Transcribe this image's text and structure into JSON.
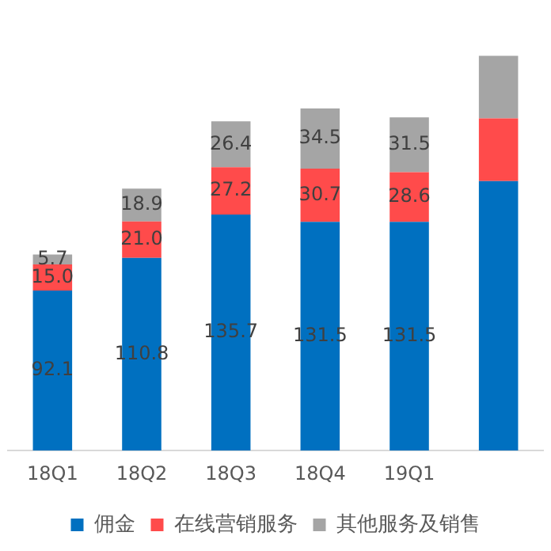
{
  "chart_data": {
    "type": "bar",
    "stacked": true,
    "categories": [
      "18Q1",
      "18Q2",
      "18Q3",
      "18Q4",
      "19Q1",
      null
    ],
    "series": [
      {
        "name": "佣金",
        "color": "#0070c0",
        "values": [
          92.1,
          110.8,
          135.7,
          131.5,
          131.5,
          155
        ],
        "value_labels": [
          "92.1",
          "110.8",
          "135.7",
          "131.5",
          "131.5",
          null
        ]
      },
      {
        "name": "在线营销服务",
        "color": "#ff4b4b",
        "values": [
          15.0,
          21.0,
          27.2,
          30.7,
          28.6,
          36
        ],
        "value_labels": [
          "15.0",
          "21.0",
          "27.2",
          "30.7",
          "28.6",
          null
        ]
      },
      {
        "name": "其他服务及销售",
        "color": "#a5a5a5",
        "values": [
          5.7,
          18.9,
          26.4,
          34.5,
          31.5,
          36
        ],
        "value_labels": [
          "5.7",
          "18.9",
          "26.4",
          "34.5",
          "31.5",
          null
        ]
      }
    ],
    "legend": "bottom",
    "grid": false
  }
}
